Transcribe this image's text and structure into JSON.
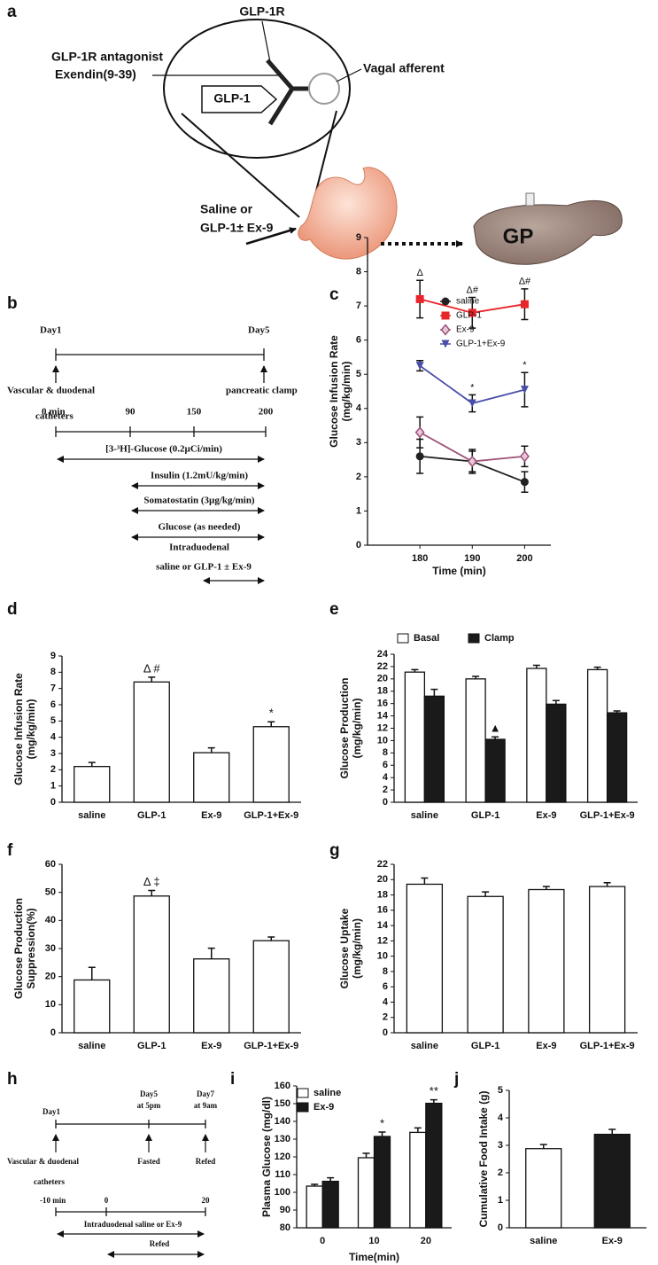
{
  "panel_a": {
    "label": "a",
    "receptor": "GLP-1R",
    "antagonist": [
      "GLP-1R  antagonist",
      "Exendin(9-39)"
    ],
    "ligand": "GLP-1",
    "nerve": "Vagal afferent",
    "infusion": [
      "Saline or",
      "GLP-1± Ex-9"
    ],
    "liver": "GP"
  },
  "panel_b": {
    "label": "b",
    "day_start": "Day1",
    "day_end": "Day5",
    "surgery": [
      "Vascular & duodenal",
      "catheters"
    ],
    "clamp": "pancreatic clamp",
    "times": [
      "0 min",
      "90",
      "150",
      "200"
    ],
    "infusions": [
      "[3-³H]-Glucose (0.2µCi/min)",
      "Insulin (1.2mU/kg/min)",
      "Somatostatin (3µg/kg/min)",
      "Glucose (as needed)"
    ],
    "intraduodenal": [
      "Intraduodenal",
      "saline  or GLP-1 ± Ex-9"
    ]
  },
  "panel_h": {
    "label": "h",
    "day1": "Day1",
    "day5": [
      "Day5",
      "at 5pm"
    ],
    "day7": [
      "Day7",
      "at 9am"
    ],
    "surgery": [
      "Vascular & duodenal",
      "catheters"
    ],
    "fasted": "Fasted",
    "refed": "Refed",
    "times": [
      "-10 min",
      "0",
      "20"
    ],
    "infusion": "Intraduodenal saline or Ex-9",
    "refeeding": "Refed"
  },
  "chart_data": [
    {
      "type": "line",
      "panel": "c",
      "y_label": [
        "Glucose Infusion Rate",
        "(mg/kg/min)"
      ],
      "x_label": "Time (min)",
      "x": [
        180,
        190,
        200
      ],
      "xlim": [
        170,
        205
      ],
      "xticks": [
        180,
        190,
        200
      ],
      "ylim": [
        0,
        9
      ],
      "yticks": [
        0,
        1,
        2,
        3,
        4,
        5,
        6,
        7,
        8,
        9
      ],
      "series": [
        {
          "name": "saline",
          "color": "#222222",
          "marker": "circle",
          "values": [
            2.6,
            2.45,
            1.85
          ],
          "errors": [
            0.5,
            0.3,
            0.3
          ]
        },
        {
          "name": "GLP-1",
          "color": "#e8252a",
          "marker": "square",
          "values": [
            7.2,
            6.8,
            7.05
          ],
          "errors": [
            0.55,
            0.45,
            0.45
          ],
          "annotations": [
            "Δ",
            "Δ#",
            "Δ#"
          ]
        },
        {
          "name": "Ex-9",
          "color": "#a0527a",
          "marker": "diamond",
          "values": [
            3.3,
            2.45,
            2.6
          ],
          "errors": [
            0.45,
            0.35,
            0.3
          ]
        },
        {
          "name": "GLP-1+Ex-9",
          "color": "#4a4ea8",
          "marker": "triangle",
          "values": [
            5.25,
            4.15,
            4.55
          ],
          "errors": [
            0.15,
            0.25,
            0.5
          ],
          "annotations": [
            null,
            "*",
            "*"
          ]
        }
      ]
    },
    {
      "type": "bar",
      "panel": "d",
      "y_label": [
        "Glucose Infusion Rate",
        "(mg/kg/min)"
      ],
      "categories": [
        "saline",
        "GLP-1",
        "Ex-9",
        "GLP-1+Ex-9"
      ],
      "values": [
        2.2,
        7.4,
        3.05,
        4.65
      ],
      "errors": [
        0.25,
        0.3,
        0.3,
        0.3
      ],
      "annotations": [
        null,
        "Δ #",
        null,
        "*"
      ],
      "color": "#ffffff",
      "ylim": [
        0,
        9
      ],
      "yticks": [
        0,
        1,
        2,
        3,
        4,
        5,
        6,
        7,
        8,
        9
      ]
    },
    {
      "type": "grouped_bar",
      "panel": "e",
      "y_label": [
        "Glucose Production",
        "(mg/kg/min)"
      ],
      "categories": [
        "saline",
        "GLP-1",
        "Ex-9",
        "GLP-1+Ex-9"
      ],
      "series": [
        {
          "name": "Basal",
          "color": "#ffffff",
          "values": [
            21.1,
            20.0,
            21.7,
            21.5
          ],
          "errors": [
            0.4,
            0.4,
            0.5,
            0.4
          ]
        },
        {
          "name": "Clamp",
          "color": "#1a1a1a",
          "values": [
            17.2,
            10.2,
            15.9,
            14.5
          ],
          "errors": [
            1.1,
            0.4,
            0.6,
            0.3
          ],
          "annotations": [
            null,
            "▲",
            null,
            null
          ]
        }
      ],
      "ylim": [
        0,
        24
      ],
      "yticks": [
        0,
        2,
        4,
        6,
        8,
        10,
        12,
        14,
        16,
        18,
        20,
        22,
        24
      ]
    },
    {
      "type": "bar",
      "panel": "f",
      "y_label": [
        "Glucose Production",
        "Suppression(%)"
      ],
      "categories": [
        "saline",
        "GLP-1",
        "Ex-9",
        "GLP-1+Ex-9"
      ],
      "values": [
        18.8,
        48.7,
        26.3,
        32.8
      ],
      "errors": [
        4.5,
        2.0,
        3.8,
        1.3
      ],
      "annotations": [
        null,
        "Δ ‡",
        null,
        null
      ],
      "color": "#ffffff",
      "ylim": [
        0,
        60
      ],
      "yticks": [
        0,
        10,
        20,
        30,
        40,
        50,
        60
      ]
    },
    {
      "type": "bar",
      "panel": "g",
      "y_label": [
        "Glucose Uptake",
        "(mg/kg/min)"
      ],
      "categories": [
        "saline",
        "GLP-1",
        "Ex-9",
        "GLP-1+Ex-9"
      ],
      "values": [
        19.4,
        17.8,
        18.7,
        19.1
      ],
      "errors": [
        0.8,
        0.6,
        0.4,
        0.5
      ],
      "color": "#ffffff",
      "ylim": [
        0,
        22
      ],
      "yticks": [
        0,
        2,
        4,
        6,
        8,
        10,
        12,
        14,
        16,
        18,
        20,
        22
      ]
    },
    {
      "type": "grouped_bar",
      "panel": "i",
      "y_label": [
        "Plasma Glucose (mg/dl)"
      ],
      "x_label": "Time(min)",
      "categories": [
        0,
        10,
        20
      ],
      "series": [
        {
          "name": "saline",
          "color": "#ffffff",
          "values": [
            103.5,
            119.5,
            133.8
          ],
          "errors": [
            1.0,
            2.5,
            2.5
          ]
        },
        {
          "name": "Ex-9",
          "color": "#1a1a1a",
          "values": [
            106.2,
            131.5,
            150.2
          ],
          "errors": [
            2.0,
            2.5,
            2.0
          ],
          "annotations": [
            null,
            "*",
            "**"
          ]
        }
      ],
      "ylim": [
        80,
        160
      ],
      "yticks": [
        80,
        90,
        100,
        110,
        120,
        130,
        140,
        150,
        160
      ]
    },
    {
      "type": "bar",
      "panel": "j",
      "y_label": [
        "Cumulative Food Intake (g)"
      ],
      "categories": [
        "saline",
        "Ex-9"
      ],
      "values": [
        2.88,
        3.4
      ],
      "errors": [
        0.15,
        0.18
      ],
      "colors": [
        "#ffffff",
        "#1a1a1a"
      ],
      "ylim": [
        0,
        5
      ],
      "yticks": [
        0,
        1,
        2,
        3,
        4,
        5
      ]
    }
  ]
}
